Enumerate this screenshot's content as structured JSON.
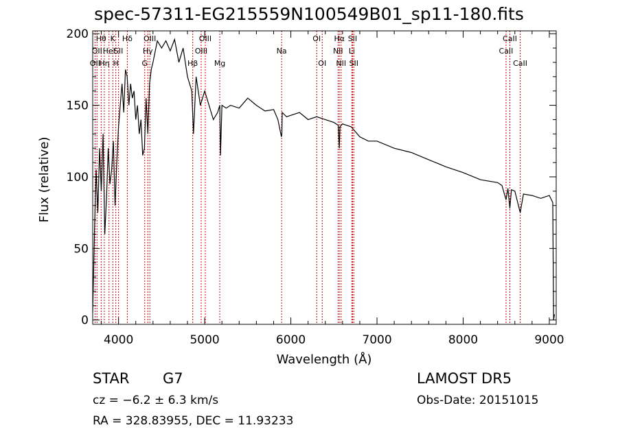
{
  "chart_data": {
    "type": "line",
    "title": "spec-57311-EG215559N100549B01_sp11-180.fits",
    "xlabel": "Wavelength (Å)",
    "ylabel": "Flux (relative)",
    "xlim": [
      3700,
      9080
    ],
    "ylim": [
      -3,
      202
    ],
    "x_ticks": [
      4000,
      5000,
      6000,
      7000,
      8000,
      9000
    ],
    "y_ticks": [
      0,
      50,
      100,
      150,
      200
    ],
    "grid": false,
    "series": [
      {
        "x": [
          3700,
          3720,
          3740,
          3760,
          3780,
          3800,
          3820,
          3840,
          3860,
          3880,
          3900,
          3920,
          3940,
          3960,
          3980,
          4000,
          4020,
          4040,
          4060,
          4080,
          4100,
          4120,
          4140,
          4160,
          4180,
          4200,
          4220,
          4240,
          4260,
          4280,
          4300,
          4320,
          4340,
          4360,
          4380,
          4400,
          4450,
          4500,
          4550,
          4600,
          4650,
          4700,
          4750,
          4800,
          4850,
          4870,
          4900,
          4950,
          5000,
          5050,
          5100,
          5150,
          5175,
          5183,
          5200,
          5250,
          5300,
          5400,
          5500,
          5600,
          5700,
          5800,
          5850,
          5890,
          5896,
          5900,
          5950,
          6000,
          6100,
          6200,
          6300,
          6400,
          6500,
          6550,
          6563,
          6570,
          6600,
          6700,
          6800,
          6900,
          7000,
          7200,
          7400,
          7600,
          7800,
          8000,
          8200,
          8400,
          8450,
          8498,
          8520,
          8542,
          8560,
          8600,
          8662,
          8700,
          8800,
          8900,
          9000,
          9040,
          9050,
          9060
        ],
        "y": [
          5,
          60,
          105,
          75,
          120,
          90,
          130,
          60,
          85,
          120,
          95,
          105,
          125,
          80,
          110,
          135,
          150,
          165,
          145,
          175,
          170,
          150,
          165,
          155,
          160,
          140,
          150,
          130,
          140,
          115,
          120,
          155,
          130,
          165,
          175,
          180,
          195,
          190,
          195,
          188,
          196,
          180,
          190,
          170,
          160,
          130,
          170,
          150,
          160,
          150,
          140,
          145,
          150,
          115,
          150,
          148,
          150,
          148,
          155,
          150,
          146,
          147,
          140,
          128,
          130,
          145,
          142,
          143,
          145,
          140,
          142,
          140,
          138,
          136,
          120,
          135,
          137,
          135,
          128,
          125,
          125,
          120,
          117,
          112,
          107,
          103,
          98,
          96,
          94,
          84,
          92,
          78,
          91,
          90,
          75,
          88,
          87,
          85,
          87,
          82,
          0,
          4
        ]
      }
    ],
    "lines": [
      {
        "w": 3727,
        "label": "OII",
        "row": 2
      },
      {
        "w": 3750,
        "label": "OII",
        "row": 1
      },
      {
        "w": 3798,
        "label": "Hθ",
        "row": 0
      },
      {
        "w": 3835,
        "label": "Hη",
        "row": 2
      },
      {
        "w": 3889,
        "label": "HeI",
        "row": 1
      },
      {
        "w": 3933,
        "label": "K",
        "row": 0
      },
      {
        "w": 3968,
        "label": "H",
        "row": 2
      },
      {
        "w": 4000,
        "label": "SII",
        "row": 1
      },
      {
        "w": 4102,
        "label": "Hδ",
        "row": 0
      },
      {
        "w": 4304,
        "label": "G",
        "row": 2
      },
      {
        "w": 4340,
        "label": "Hγ",
        "row": 1
      },
      {
        "w": 4363,
        "label": "OIII",
        "row": 0
      },
      {
        "w": 4861,
        "label": "Hβ",
        "row": 2
      },
      {
        "w": 4959,
        "label": "OIII",
        "row": 1
      },
      {
        "w": 5007,
        "label": "OIII",
        "row": 0
      },
      {
        "w": 5175,
        "label": "Mg",
        "row": 2
      },
      {
        "w": 5893,
        "label": "Na",
        "row": 1
      },
      {
        "w": 6300,
        "label": "OI",
        "row": 0
      },
      {
        "w": 6364,
        "label": "OI",
        "row": 2
      },
      {
        "w": 6548,
        "label": "NII",
        "row": 1
      },
      {
        "w": 6563,
        "label": "Hα",
        "row": 0
      },
      {
        "w": 6583,
        "label": "NII",
        "row": 2
      },
      {
        "w": 6708,
        "label": "Li",
        "row": 1
      },
      {
        "w": 6716,
        "label": "SII",
        "row": 0
      },
      {
        "w": 6731,
        "label": "SII",
        "row": 2
      },
      {
        "w": 8498,
        "label": "CaII",
        "row": 1
      },
      {
        "w": 8542,
        "label": "CaII",
        "row": 0
      },
      {
        "w": 8662,
        "label": "CaII",
        "row": 2
      }
    ]
  },
  "info": {
    "object_class": "STAR",
    "subclass": "G7",
    "survey": "LAMOST DR5",
    "redshift": "cz = −6.2 ± 6.3 km/s",
    "obs_date": "Obs-Date: 20151015",
    "coords": "RA = 328.83955, DEC =  11.93233"
  },
  "colors": {
    "spectrum": "#000000",
    "line_markers": "#cc0000",
    "axes": "#000000"
  }
}
